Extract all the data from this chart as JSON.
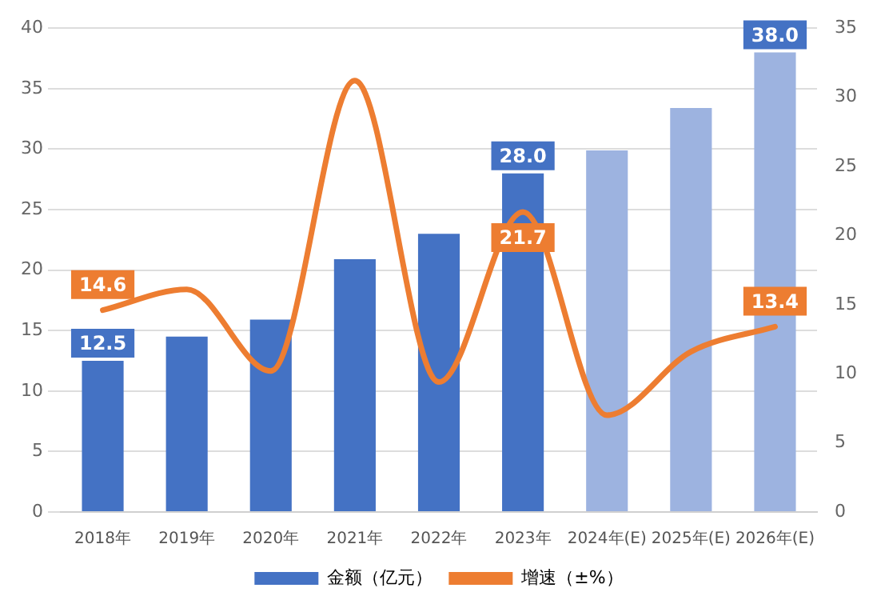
{
  "chart_data": {
    "type": "bar",
    "categories": [
      "2018年",
      "2019年",
      "2020年",
      "2021年",
      "2022年",
      "2023年",
      "2024年(E)",
      "2025年(E)",
      "2026年(E)"
    ],
    "series": [
      {
        "name": "金额（亿元）",
        "colors": [
          "#4472c4",
          "#4472c4",
          "#4472c4",
          "#4472c4",
          "#4472c4",
          "#4472c4",
          "#9db3e0",
          "#9db3e0",
          "#9db3e0"
        ],
        "color": "#4472c4",
        "values": [
          12.5,
          14.5,
          15.9,
          20.9,
          23.0,
          28.0,
          29.9,
          33.4,
          38.0
        ],
        "value_labels": [
          "12.5",
          null,
          null,
          null,
          null,
          "28.0",
          null,
          null,
          "38.0"
        ]
      },
      {
        "name": "增速（±%）",
        "type": "line",
        "axis": "y2",
        "color": "#ed7d31",
        "values": [
          14.6,
          16.1,
          10.2,
          31.2,
          9.4,
          21.7,
          7.0,
          11.6,
          13.4
        ],
        "value_labels": [
          "14.6",
          null,
          null,
          null,
          null,
          "21.7",
          null,
          null,
          "13.4"
        ]
      }
    ],
    "ylim": [
      0,
      40
    ],
    "yticks": [
      0,
      5,
      10,
      15,
      20,
      25,
      30,
      35,
      40
    ],
    "y2lim": [
      0,
      35
    ],
    "y2ticks": [
      0,
      5,
      10,
      15,
      20,
      25,
      30,
      35
    ],
    "grid": "y",
    "legend": "bottom",
    "marker": "none"
  }
}
